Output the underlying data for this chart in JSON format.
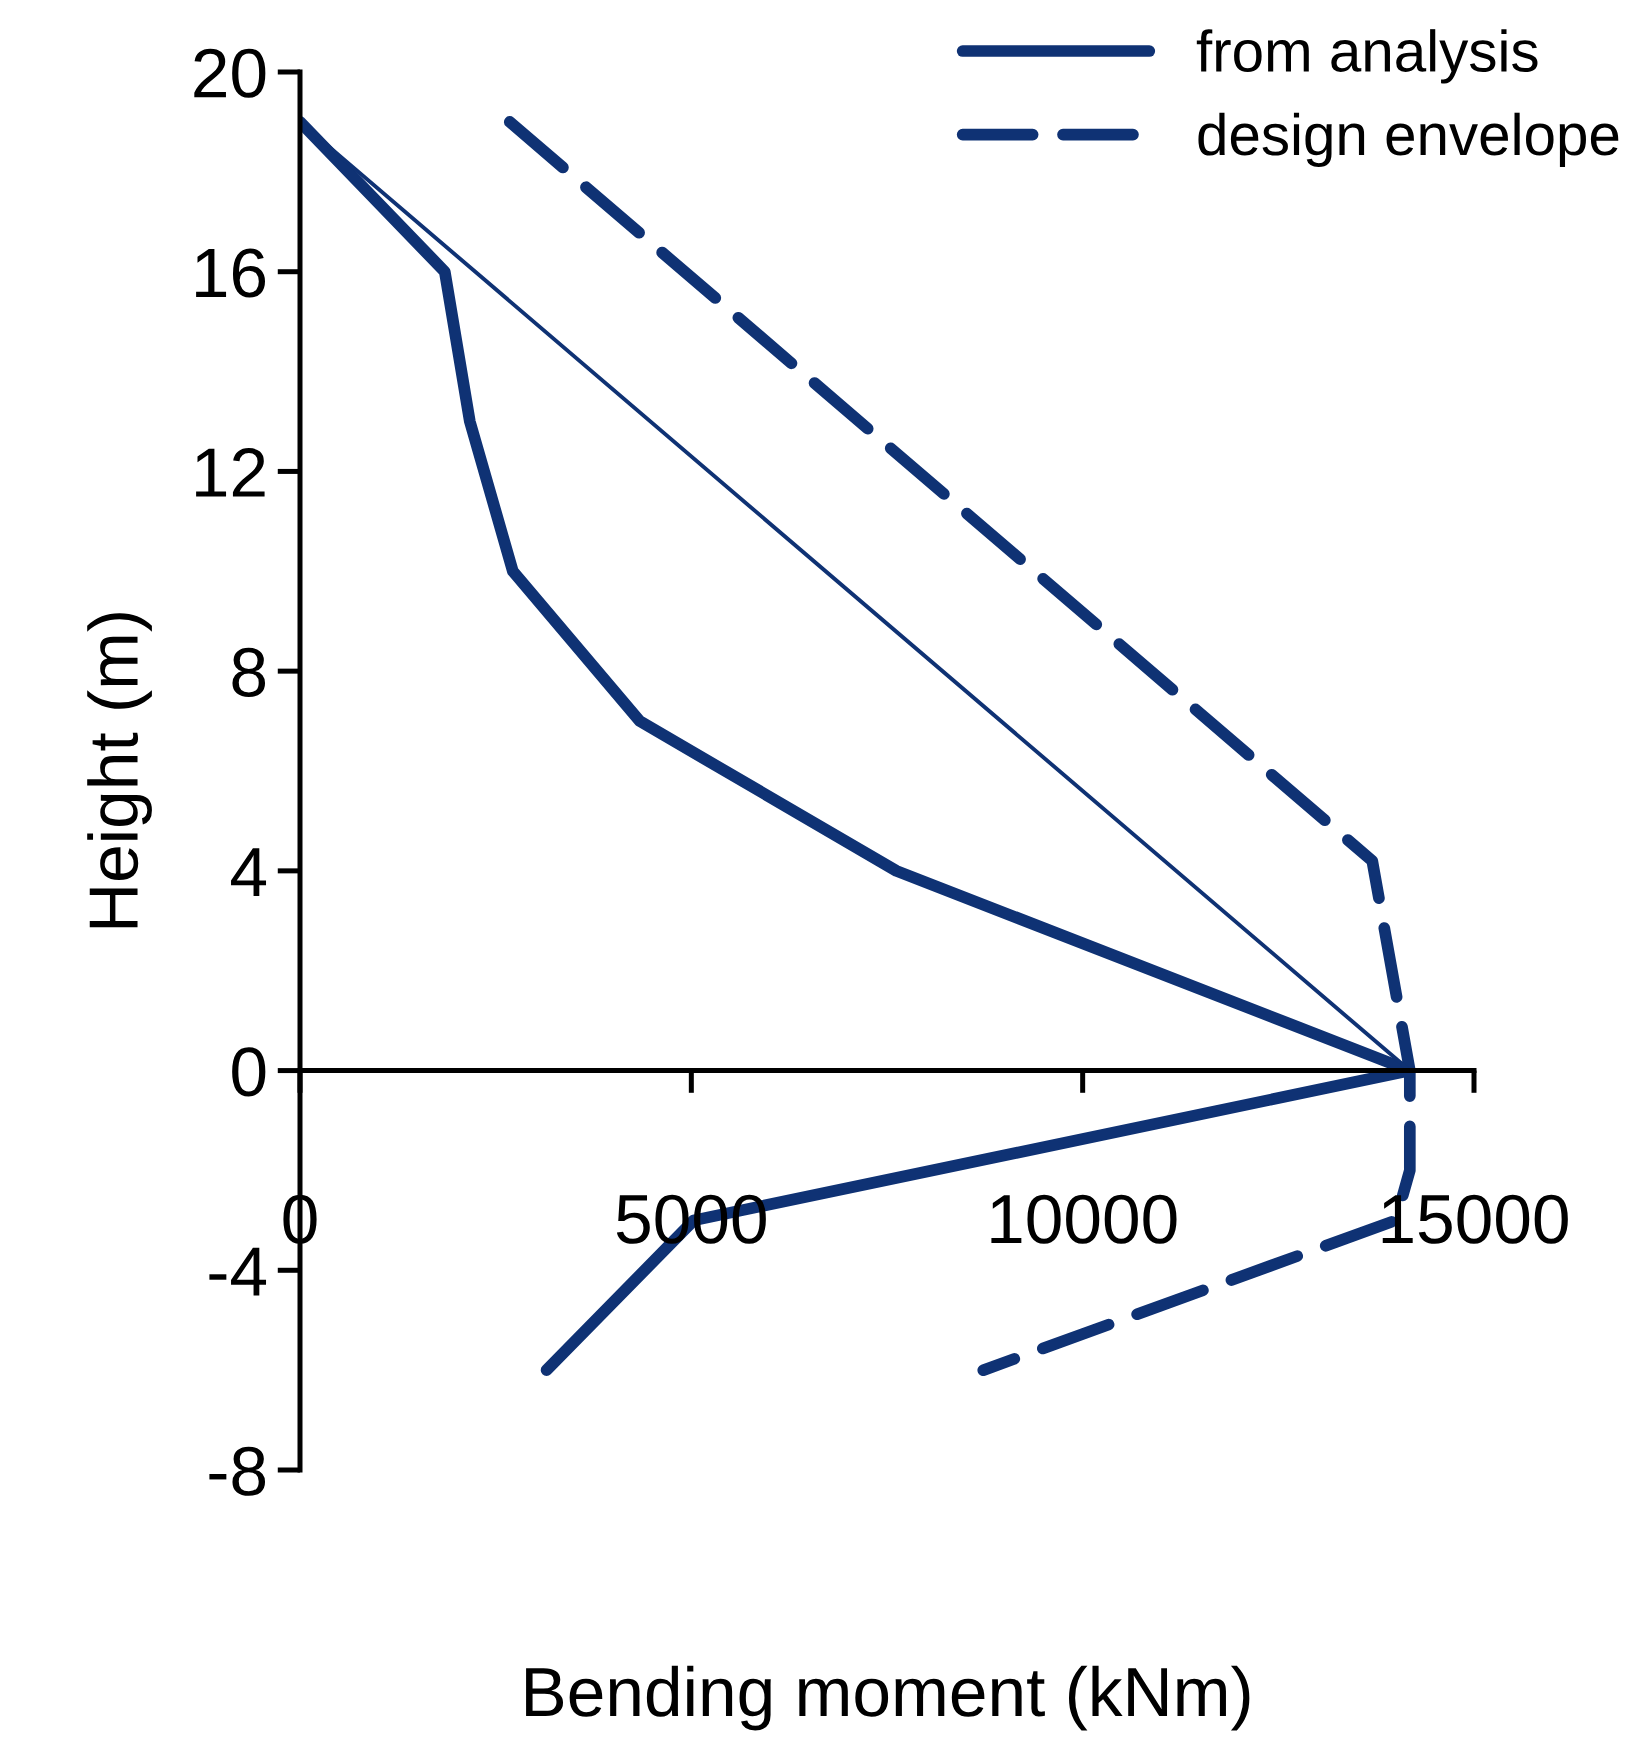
{
  "chart_data": {
    "type": "line",
    "xlabel": "Bending moment (kNm)",
    "ylabel": "Height (m)",
    "xlim": [
      0,
      15000
    ],
    "xticks": [
      0,
      5000,
      10000,
      15000
    ],
    "ylim": [
      -8,
      20
    ],
    "yticks": [
      -8,
      -4,
      0,
      4,
      8,
      12,
      16,
      20
    ],
    "grid": false,
    "legend": "top right",
    "marker": "none",
    "series": [
      {
        "name": "from analysis",
        "color": "#0f3274",
        "line_style": "solid",
        "x": [
          0,
          1850,
          2170,
          2720,
          4340,
          7620,
          14180,
          5030,
          3150
        ],
        "values": [
          19,
          16,
          13,
          10,
          7,
          4,
          0,
          -3,
          -6
        ]
      },
      {
        "name": "design envelope",
        "color": "#0f3274",
        "line_style": "dashed",
        "x": [
          2680,
          13700,
          14180,
          14180,
          14000,
          8730
        ],
        "values": [
          19,
          4.2,
          0,
          -2,
          -3,
          -6
        ]
      },
      {
        "color": "#0f3274",
        "line_style": "solid",
        "x": [
          0,
          14180
        ],
        "values": [
          19,
          0
        ]
      }
    ]
  }
}
